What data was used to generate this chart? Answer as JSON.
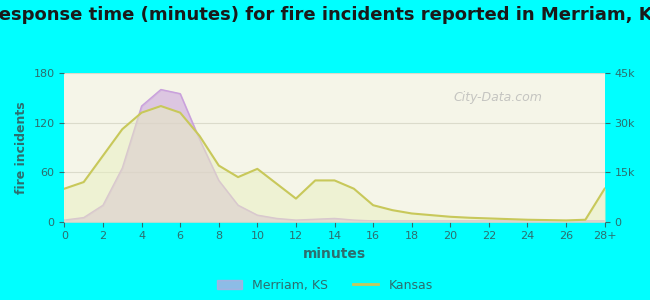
{
  "title": "Response time (minutes) for fire incidents reported in Merriam, KS",
  "xlabel": "minutes",
  "ylabel_left": "fire incidents",
  "ylabel_right": "",
  "bg_outer": "#00FFFF",
  "bg_inner": "#f5f5e8",
  "x_ticks": [
    0,
    2,
    4,
    6,
    8,
    10,
    12,
    14,
    16,
    18,
    20,
    22,
    24,
    26,
    "28+"
  ],
  "x_values": [
    0,
    1,
    2,
    3,
    4,
    5,
    6,
    7,
    8,
    9,
    10,
    11,
    12,
    13,
    14,
    15,
    16,
    17,
    18,
    19,
    20,
    21,
    22,
    23,
    24,
    25,
    26,
    27,
    28
  ],
  "merriam_y": [
    2,
    5,
    20,
    65,
    140,
    160,
    155,
    100,
    50,
    20,
    8,
    4,
    2,
    3,
    4,
    2,
    1,
    1,
    1,
    1,
    1,
    1,
    1,
    1,
    1,
    1,
    1,
    1,
    1
  ],
  "kansas_y": [
    10000,
    12000,
    20000,
    28000,
    33000,
    35000,
    33000,
    26000,
    17000,
    13500,
    16000,
    11500,
    7000,
    12500,
    12500,
    10000,
    5000,
    3500,
    2500,
    2000,
    1500,
    1200,
    1000,
    800,
    600,
    500,
    400,
    600,
    10000
  ],
  "ylim_left": [
    0,
    180
  ],
  "ylim_right": [
    0,
    45000
  ],
  "yticks_left": [
    0,
    60,
    120,
    180
  ],
  "yticks_right": [
    0,
    15000,
    30000,
    45000
  ],
  "ytick_labels_right": [
    "0",
    "15k",
    "30k",
    "45k"
  ],
  "merriam_color": "#c9a0dc",
  "merriam_fill": "#c9a0dc",
  "merriam_fill_alpha": 0.55,
  "kansas_color": "#c8c85a",
  "kansas_fill": "#e8f0c0",
  "kansas_fill_alpha": 0.5,
  "title_fontsize": 13,
  "axis_label_color": "#2d6e6e",
  "tick_color": "#2d6e6e",
  "watermark": "City-Data.com",
  "grid_color": "#d0d0c0",
  "grid_alpha": 0.7
}
